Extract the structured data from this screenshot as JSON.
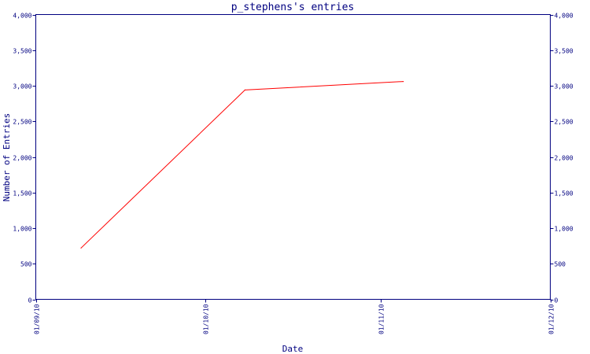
{
  "chart_data": {
    "type": "line",
    "title": "p_stephens's entries",
    "xlabel": "Date",
    "ylabel": "Number of Entries",
    "x_ticks": [
      "01/09/10",
      "01/10/10",
      "01/11/10",
      "01/12/10"
    ],
    "y_ticks": [
      "0",
      "500",
      "1,000",
      "1,500",
      "2,000",
      "2,500",
      "3,000",
      "3,500",
      "4,000"
    ],
    "ylim": [
      0,
      4000
    ],
    "xlim": [
      "2010-09-01",
      "2010-12-01"
    ],
    "series": [
      {
        "x": [
          "2010-09-09",
          "2010-10-08",
          "2010-11-05"
        ],
        "values": [
          720,
          2940,
          3060
        ]
      }
    ],
    "right_axis": true,
    "grid": false,
    "colors": {
      "axis": "#000080",
      "line": "#ff0000",
      "background": "#ffffff"
    }
  }
}
